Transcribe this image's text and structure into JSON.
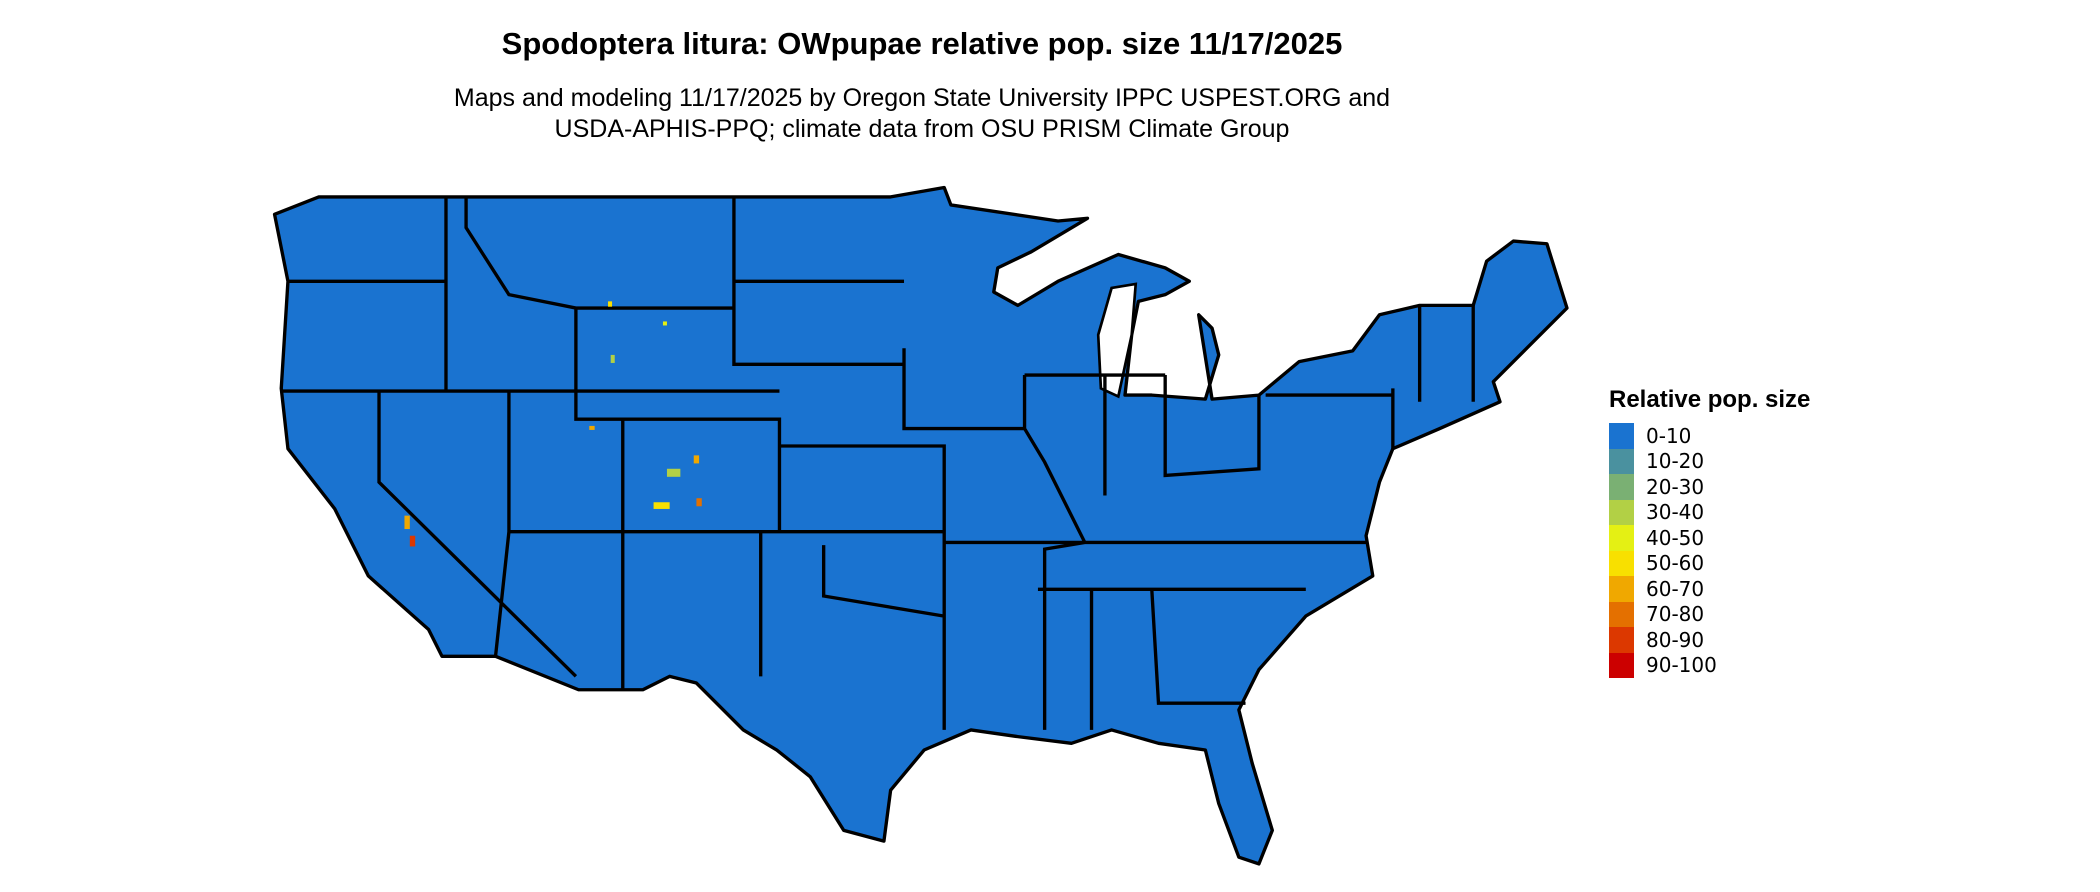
{
  "title": "Spodoptera litura: OWpupae relative pop. size 11/17/2025",
  "subtitle_lines": [
    "Maps and modeling 11/17/2025 by Oregon State University IPPC USPEST.ORG and",
    "USDA-APHIS-PPQ; climate data from OSU PRISM Climate Group"
  ],
  "legend": {
    "title": "Relative pop. size",
    "items": [
      {
        "label": "0-10",
        "color": "#1a73d0"
      },
      {
        "label": "10-20",
        "color": "#4a919f"
      },
      {
        "label": "20-30",
        "color": "#7ab073"
      },
      {
        "label": "30-40",
        "color": "#b2d045"
      },
      {
        "label": "40-50",
        "color": "#e4f014"
      },
      {
        "label": "50-60",
        "color": "#f8e000"
      },
      {
        "label": "60-70",
        "color": "#f0a800"
      },
      {
        "label": "70-80",
        "color": "#e47000"
      },
      {
        "label": "80-90",
        "color": "#dc3800"
      },
      {
        "label": "90-100",
        "color": "#cc0000"
      }
    ]
  },
  "map": {
    "region": "Contiguous United States",
    "base_color": "#1a73d0",
    "border_color": "#000000"
  }
}
